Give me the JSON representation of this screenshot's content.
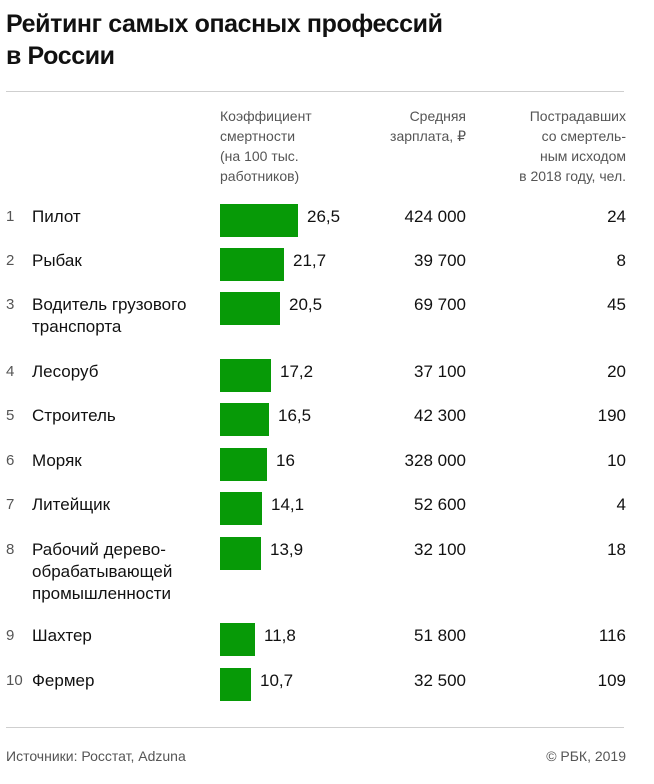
{
  "title": [
    "Рейтинг самых опасных профессий",
    "в России"
  ],
  "columns": {
    "coef": [
      "Коэффициент",
      "смертности",
      "(на 100 тыс.",
      "работников)"
    ],
    "salary": [
      "Средняя",
      "зарплата, ₽"
    ],
    "victims": [
      "Пострадавших",
      "со смертель-",
      "ным исходом",
      "в 2018 году, чел."
    ]
  },
  "colors": {
    "bar": "#079a07"
  },
  "chart_data": {
    "type": "bar",
    "orientation": "horizontal",
    "title": "Рейтинг самых опасных профессий в России",
    "categories": [
      "Пилот",
      "Рыбак",
      "Водитель грузового транспорта",
      "Лесоруб",
      "Строитель",
      "Моряк",
      "Литейщик",
      "Рабочий деревообрабатывающей промышленности",
      "Шахтер",
      "Фермер"
    ],
    "series": [
      {
        "name": "Коэффициент смертности (на 100 тыс. работников)",
        "values": [
          26.5,
          21.7,
          20.5,
          17.2,
          16.5,
          16,
          14.1,
          13.9,
          11.8,
          10.7
        ]
      }
    ],
    "rows": [
      {
        "rank": "1",
        "name": [
          "Пилот"
        ],
        "coef": 26.5,
        "coef_label": "26,5",
        "salary": "424 000",
        "victims": "24"
      },
      {
        "rank": "2",
        "name": [
          "Рыбак"
        ],
        "coef": 21.7,
        "coef_label": "21,7",
        "salary": "39 700",
        "victims": "8"
      },
      {
        "rank": "3",
        "name": [
          "Водитель грузового",
          "транспорта"
        ],
        "coef": 20.5,
        "coef_label": "20,5",
        "salary": "69 700",
        "victims": "45"
      },
      {
        "rank": "4",
        "name": [
          "Лесоруб"
        ],
        "coef": 17.2,
        "coef_label": "17,2",
        "salary": "37 100",
        "victims": "20"
      },
      {
        "rank": "5",
        "name": [
          "Строитель"
        ],
        "coef": 16.5,
        "coef_label": "16,5",
        "salary": "42 300",
        "victims": "190"
      },
      {
        "rank": "6",
        "name": [
          "Моряк"
        ],
        "coef": 16,
        "coef_label": "16",
        "salary": "328 000",
        "victims": "10"
      },
      {
        "rank": "7",
        "name": [
          "Литейщик"
        ],
        "coef": 14.1,
        "coef_label": "14,1",
        "salary": "52 600",
        "victims": "4"
      },
      {
        "rank": "8",
        "name": [
          "Рабочий дерево-",
          "обрабатывающей",
          "промышленности"
        ],
        "coef": 13.9,
        "coef_label": "13,9",
        "salary": "32 100",
        "victims": "18"
      },
      {
        "rank": "9",
        "name": [
          "Шахтер"
        ],
        "coef": 11.8,
        "coef_label": "11,8",
        "salary": "51 800",
        "victims": "116"
      },
      {
        "rank": "10",
        "name": [
          "Фермер"
        ],
        "coef": 10.7,
        "coef_label": "10,7",
        "salary": "32 500",
        "victims": "109"
      }
    ],
    "xlim": [
      0,
      26.5
    ],
    "grid": false,
    "legend": "none"
  },
  "footer": {
    "source": "Источники: Росстат, Adzuna",
    "copyright": "© РБК, 2019"
  }
}
